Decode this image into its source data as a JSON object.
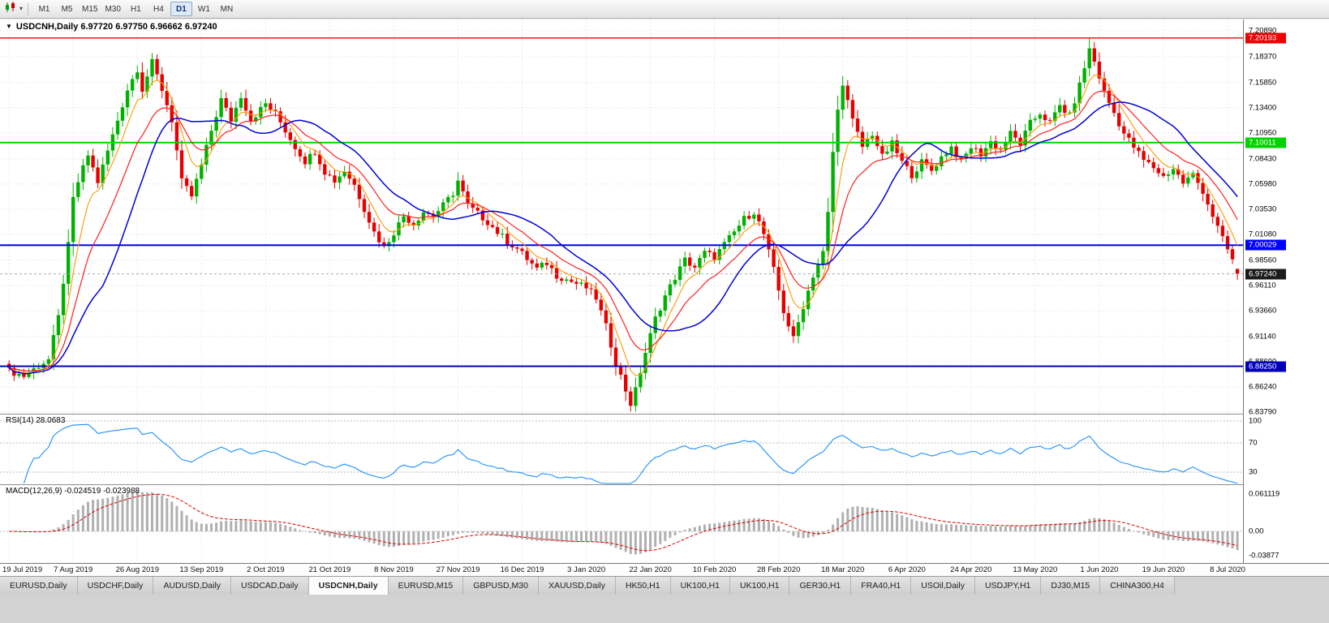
{
  "toolbar": {
    "timeframes": [
      "M1",
      "M5",
      "M15",
      "M30",
      "H1",
      "H4",
      "D1",
      "W1",
      "MN"
    ],
    "active_timeframe": "D1"
  },
  "chart": {
    "title": "USDCNH,Daily 6.97720 6.97750 6.96662 6.97240",
    "symbol": "USDCNH",
    "period": "Daily",
    "current_price": "6.97240",
    "price_scale": [
      "7.20890",
      "7.18370",
      "7.15850",
      "7.13400",
      "7.10950",
      "7.08430",
      "7.05980",
      "7.03530",
      "7.01080",
      "6.98560",
      "6.96110",
      "6.93660",
      "6.91140",
      "6.88690",
      "6.86240",
      "6.83790"
    ],
    "dates": [
      "19 Jul 2019",
      "7 Aug 2019",
      "26 Aug 2019",
      "13 Sep 2019",
      "2 Oct 2019",
      "21 Oct 2019",
      "8 Nov 2019",
      "27 Nov 2019",
      "16 Dec 2019",
      "3 Jan 2020",
      "22 Jan 2020",
      "10 Feb 2020",
      "28 Feb 2020",
      "18 Mar 2020",
      "6 Apr 2020",
      "24 Apr 2020",
      "13 May 2020",
      "1 Jun 2020",
      "19 Jun 2020",
      "8 Jul 2020"
    ]
  },
  "rsi": {
    "label": "RSI(14) 28.0683",
    "current": 28.0683,
    "levels": [
      {
        "text": "100",
        "value": 100
      },
      {
        "text": "70",
        "value": 70
      },
      {
        "text": "30",
        "value": 30
      }
    ]
  },
  "macd": {
    "label": "MACD(12,26,9) -0.024519 -0.023988",
    "scale": [
      {
        "text": "0.061119",
        "value": 0.061119
      },
      {
        "text": "0.00",
        "value": 0
      },
      {
        "text": "-0.03877",
        "value": -0.03877
      }
    ]
  },
  "tabs": {
    "items": [
      "EURUSD,Daily",
      "USDCHF,Daily",
      "AUDUSD,Daily",
      "USDCAD,Daily",
      "USDCNH,Daily",
      "EURUSD,M15",
      "GBPUSD,M30",
      "XAUUSD,Daily",
      "HK50,H1",
      "UK100,H1",
      "UK100,H1",
      "GER30,H1",
      "FRA40,H1",
      "USOil,Daily",
      "USDJPY,H1",
      "DJ30,M15",
      "CHINA300,H4"
    ],
    "active_index": 4
  },
  "chart_data": {
    "type": "candlestick",
    "symbol": "USDCNH",
    "timeframe": "Daily",
    "candle_count": 250,
    "scale_top": 7.2089,
    "scale_bottom": 6.8379,
    "extreme_high": 7.20193,
    "extreme_low": 6.8385,
    "last_ohlc": {
      "open": 6.9772,
      "high": 6.9775,
      "low": 6.96662,
      "close": 6.9724
    },
    "horizontal_lines": [
      {
        "price": "7.20193",
        "color": "#ee0000",
        "width": 1.4
      },
      {
        "price": "7.10011",
        "color": "#00d300",
        "width": 2
      },
      {
        "price": "7.00029",
        "color": "#0000ff",
        "width": 2
      },
      {
        "price": "6.88250",
        "color": "#0000bb",
        "width": 2
      }
    ],
    "moving_averages": [
      {
        "name": "fast",
        "type": "ema",
        "period": 6,
        "color": "#ff9900",
        "width": 1.1
      },
      {
        "name": "medium",
        "type": "ema",
        "period": 13,
        "color": "#ff2020",
        "width": 1.2
      },
      {
        "name": "slow",
        "type": "sma",
        "period": 20,
        "color": "#0000dd",
        "width": 1.5
      }
    ],
    "rsi": {
      "period": 14,
      "current": 28.0683
    },
    "macd": {
      "fast": 12,
      "slow": 26,
      "signal": 9,
      "current_main": -0.024519,
      "current_signal": -0.023988
    },
    "colors": {
      "up": "#00b200",
      "down": "#e60000",
      "grid": "#dadada",
      "rsi_line": "#1e90ff",
      "histogram": "#b0b0b0",
      "signal_line": "#dd0000",
      "price_badge": "#1b1b1b",
      "last_price_dash": "#aaaaaa"
    },
    "close_waypoints": [
      [
        0,
        6.878
      ],
      [
        3,
        6.873
      ],
      [
        6,
        6.883
      ],
      [
        8,
        6.889
      ],
      [
        10,
        6.93
      ],
      [
        12,
        7.0
      ],
      [
        13,
        7.045
      ],
      [
        14,
        7.062
      ],
      [
        16,
        7.088
      ],
      [
        18,
        7.062
      ],
      [
        20,
        7.092
      ],
      [
        22,
        7.122
      ],
      [
        24,
        7.152
      ],
      [
        26,
        7.172
      ],
      [
        27,
        7.152
      ],
      [
        29,
        7.178
      ],
      [
        31,
        7.152
      ],
      [
        33,
        7.122
      ],
      [
        35,
        7.062
      ],
      [
        37,
        7.048
      ],
      [
        39,
        7.078
      ],
      [
        41,
        7.112
      ],
      [
        43,
        7.142
      ],
      [
        45,
        7.122
      ],
      [
        47,
        7.146
      ],
      [
        49,
        7.122
      ],
      [
        52,
        7.138
      ],
      [
        54,
        7.128
      ],
      [
        56,
        7.112
      ],
      [
        58,
        7.096
      ],
      [
        60,
        7.082
      ],
      [
        62,
        7.092
      ],
      [
        64,
        7.072
      ],
      [
        66,
        7.063
      ],
      [
        68,
        7.073
      ],
      [
        70,
        7.059
      ],
      [
        72,
        7.036
      ],
      [
        74,
        7.013
      ],
      [
        76,
        6.998
      ],
      [
        78,
        7.013
      ],
      [
        80,
        7.029
      ],
      [
        82,
        7.021
      ],
      [
        84,
        7.033
      ],
      [
        86,
        7.029
      ],
      [
        88,
        7.039
      ],
      [
        90,
        7.051
      ],
      [
        91,
        7.063
      ],
      [
        93,
        7.039
      ],
      [
        95,
        7.031
      ],
      [
        97,
        7.023
      ],
      [
        99,
        7.013
      ],
      [
        101,
        7.004
      ],
      [
        103,
        6.997
      ],
      [
        105,
        6.987
      ],
      [
        107,
        6.977
      ],
      [
        109,
        6.983
      ],
      [
        111,
        6.971
      ],
      [
        113,
        6.967
      ],
      [
        115,
        6.963
      ],
      [
        117,
        6.959
      ],
      [
        119,
        6.949
      ],
      [
        121,
        6.921
      ],
      [
        123,
        6.886
      ],
      [
        126,
        6.846
      ],
      [
        127,
        6.859
      ],
      [
        129,
        6.896
      ],
      [
        131,
        6.929
      ],
      [
        133,
        6.951
      ],
      [
        135,
        6.969
      ],
      [
        137,
        6.986
      ],
      [
        139,
        6.979
      ],
      [
        141,
        6.993
      ],
      [
        143,
        6.989
      ],
      [
        145,
        7.001
      ],
      [
        147,
        7.013
      ],
      [
        149,
        7.026
      ],
      [
        151,
        7.033
      ],
      [
        153,
        7.011
      ],
      [
        155,
        6.976
      ],
      [
        157,
        6.936
      ],
      [
        159,
        6.909
      ],
      [
        161,
        6.941
      ],
      [
        163,
        6.971
      ],
      [
        165,
        6.993
      ],
      [
        166,
        7.031
      ],
      [
        167,
        7.091
      ],
      [
        168,
        7.131
      ],
      [
        169,
        7.159
      ],
      [
        171,
        7.121
      ],
      [
        173,
        7.096
      ],
      [
        175,
        7.109
      ],
      [
        177,
        7.086
      ],
      [
        179,
        7.099
      ],
      [
        181,
        7.081
      ],
      [
        183,
        7.069
      ],
      [
        185,
        7.081
      ],
      [
        187,
        7.073
      ],
      [
        189,
        7.086
      ],
      [
        191,
        7.096
      ],
      [
        193,
        7.081
      ],
      [
        195,
        7.096
      ],
      [
        197,
        7.089
      ],
      [
        199,
        7.101
      ],
      [
        201,
        7.093
      ],
      [
        203,
        7.109
      ],
      [
        205,
        7.099
      ],
      [
        207,
        7.119
      ],
      [
        209,
        7.129
      ],
      [
        211,
        7.119
      ],
      [
        213,
        7.136
      ],
      [
        215,
        7.126
      ],
      [
        217,
        7.156
      ],
      [
        219,
        7.191
      ],
      [
        220,
        7.179
      ],
      [
        222,
        7.149
      ],
      [
        224,
        7.129
      ],
      [
        226,
        7.109
      ],
      [
        228,
        7.096
      ],
      [
        230,
        7.083
      ],
      [
        232,
        7.076
      ],
      [
        234,
        7.067
      ],
      [
        236,
        7.075
      ],
      [
        238,
        7.061
      ],
      [
        240,
        7.069
      ],
      [
        242,
        7.053
      ],
      [
        244,
        7.029
      ],
      [
        246,
        7.006
      ],
      [
        248,
        6.986
      ],
      [
        249,
        6.9724
      ]
    ]
  }
}
